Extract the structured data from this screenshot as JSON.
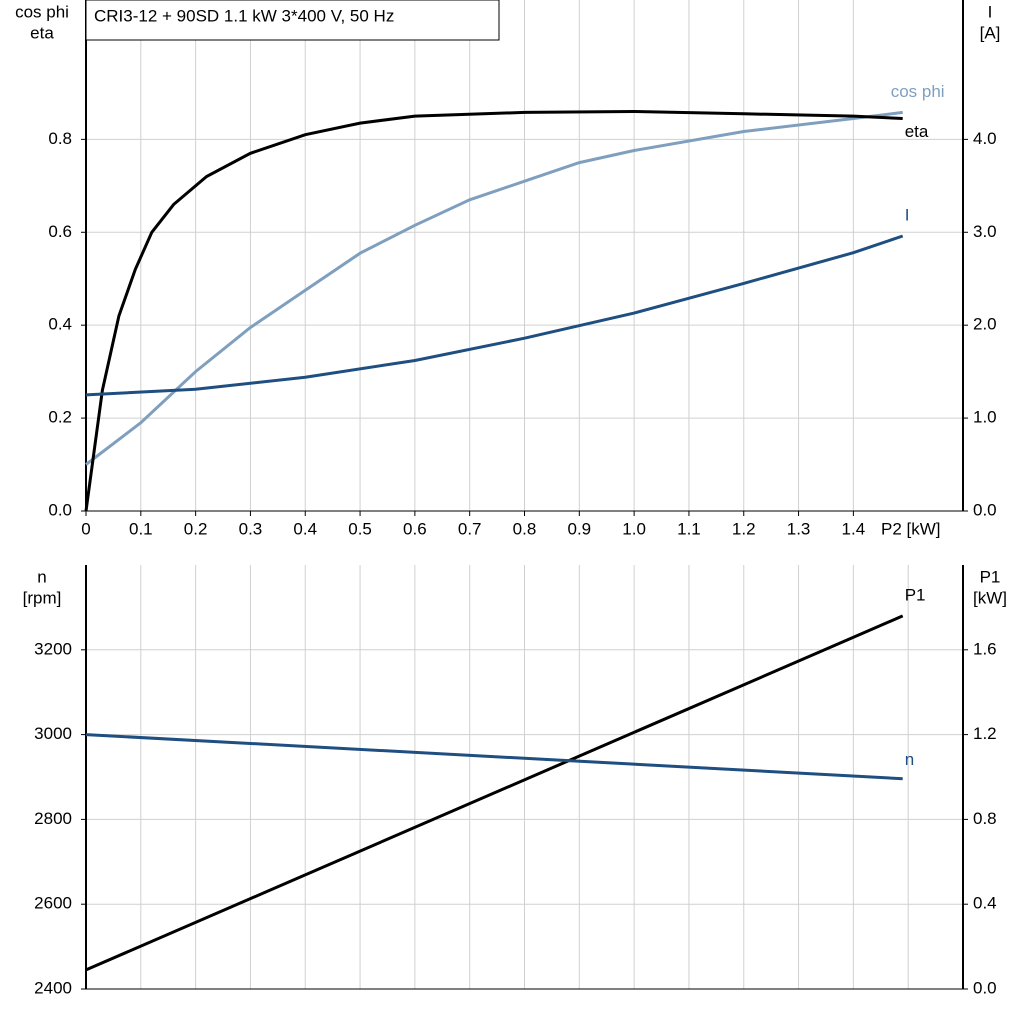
{
  "chart_data": [
    {
      "type": "line",
      "title": "CRI3-12 + 90SD   1.1 kW   3*400 V, 50 Hz",
      "ylabel": [
        "cos phi",
        "eta"
      ],
      "y2label": [
        "I",
        "[A]"
      ],
      "xlabel": "P2 [kW]",
      "xlim": [
        0,
        1.6
      ],
      "xticks": [
        0,
        0.1,
        0.2,
        0.3,
        0.4,
        0.5,
        0.6,
        0.7,
        0.8,
        0.9,
        {
          "value": 1.0,
          "label": "1.0"
        },
        1.1,
        1.2,
        1.3,
        1.4
      ],
      "ylim": [
        0,
        1.1
      ],
      "yticks": [
        {
          "value": 0,
          "label": "0.0"
        },
        0.2,
        0.4,
        0.6,
        0.8
      ],
      "y2lim": [
        0,
        5.5
      ],
      "y2ticks": [
        {
          "value": 0,
          "label": "0.0"
        },
        {
          "value": 1,
          "label": "1.0"
        },
        {
          "value": 2,
          "label": "2.0"
        },
        {
          "value": 3,
          "label": "3.0"
        },
        {
          "value": 4,
          "label": "4.0"
        }
      ],
      "grid": true,
      "series": [
        {
          "name": "cos phi",
          "color": "#7f9fbf",
          "x": [
            0,
            0.1,
            0.2,
            0.3,
            0.4,
            0.5,
            0.6,
            0.7,
            0.8,
            0.9,
            1.0,
            1.2,
            1.4,
            1.49
          ],
          "values": [
            0.1,
            0.19,
            0.3,
            0.395,
            0.475,
            0.555,
            0.615,
            0.67,
            0.71,
            0.75,
            0.776,
            0.817,
            0.845,
            0.858
          ]
        },
        {
          "name": "eta",
          "color": "#000000",
          "x": [
            0,
            0.03,
            0.06,
            0.09,
            0.12,
            0.16,
            0.22,
            0.3,
            0.4,
            0.5,
            0.6,
            0.8,
            1.0,
            1.2,
            1.4,
            1.49
          ],
          "values": [
            0,
            0.26,
            0.42,
            0.52,
            0.6,
            0.66,
            0.72,
            0.77,
            0.81,
            0.835,
            0.85,
            0.858,
            0.86,
            0.855,
            0.85,
            0.845
          ]
        },
        {
          "name": "I",
          "color": "#1f4e80",
          "axis": "y2",
          "x": [
            0,
            0.2,
            0.4,
            0.6,
            0.8,
            1.0,
            1.2,
            1.4,
            1.49
          ],
          "values": [
            1.25,
            1.31,
            1.44,
            1.62,
            1.86,
            2.13,
            2.45,
            2.78,
            2.96
          ]
        }
      ]
    },
    {
      "type": "line",
      "ylabel": [
        "n",
        "[rpm]"
      ],
      "y2label": [
        "P1",
        "[kW]"
      ],
      "xlim": [
        0,
        1.6
      ],
      "xgrid": [
        0.1,
        0.2,
        0.3,
        0.4,
        0.5,
        0.6,
        0.7,
        0.8,
        0.9,
        1.0,
        1.1,
        1.2,
        1.3,
        1.4,
        1.5
      ],
      "ylim": [
        2400,
        3400
      ],
      "yticks": [
        2400,
        2600,
        2800,
        3000,
        3200
      ],
      "y2lim": [
        0,
        2.0
      ],
      "y2ticks": [
        {
          "value": 0,
          "label": "0.0"
        },
        0.4,
        0.8,
        1.2,
        1.6
      ],
      "grid": true,
      "series": [
        {
          "name": "P1",
          "color": "#000000",
          "axis": "y2",
          "x": [
            0,
            1.49
          ],
          "values": [
            0.09,
            1.76
          ]
        },
        {
          "name": "n",
          "color": "#1f4e80",
          "x": [
            0,
            1.49
          ],
          "values": [
            3000,
            2896
          ]
        }
      ]
    }
  ]
}
